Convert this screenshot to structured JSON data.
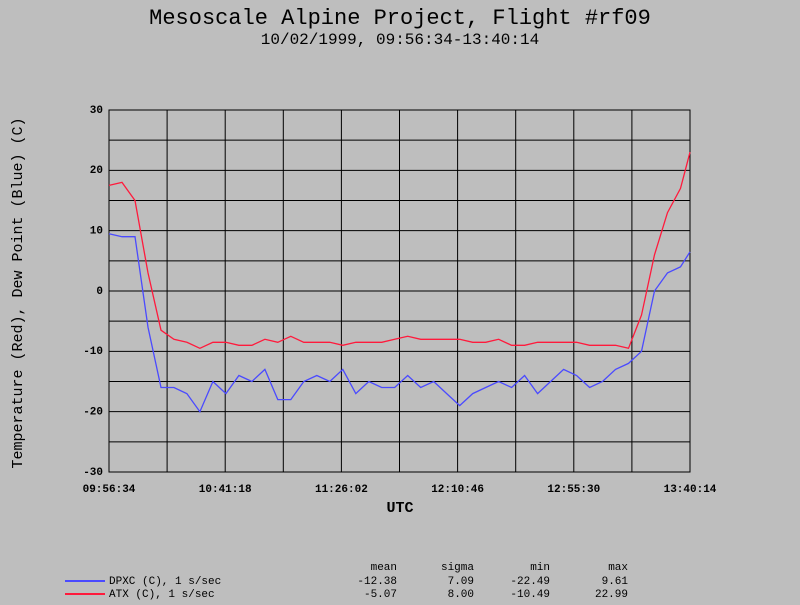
{
  "chart_data": {
    "type": "line",
    "title": "Mesoscale Alpine Project, Flight #rf09",
    "subtitle": "10/02/1999, 09:56:34-13:40:14",
    "x_label": "UTC",
    "y_label": "Temperature (Red), Dew Point (Blue) (C)",
    "x": [
      "09:56:34",
      "10:01:34",
      "10:06:34",
      "10:11:34",
      "10:16:34",
      "10:21:34",
      "10:26:34",
      "10:31:34",
      "10:36:34",
      "10:41:34",
      "10:46:34",
      "10:51:34",
      "10:56:34",
      "11:01:34",
      "11:06:34",
      "11:11:34",
      "11:16:34",
      "11:21:34",
      "11:26:34",
      "11:31:34",
      "11:36:34",
      "11:41:34",
      "11:46:34",
      "11:51:34",
      "11:56:34",
      "12:01:34",
      "12:06:34",
      "12:11:34",
      "12:16:34",
      "12:21:34",
      "12:26:34",
      "12:31:34",
      "12:36:34",
      "12:41:34",
      "12:46:34",
      "12:51:34",
      "12:56:34",
      "13:01:34",
      "13:06:34",
      "13:11:34",
      "13:16:34",
      "13:21:34",
      "13:26:34",
      "13:31:34",
      "13:36:34",
      "13:40:14"
    ],
    "series": [
      {
        "name": "DPXC (C), 1 s/sec",
        "color": "#4a4aff",
        "values": [
          9.5,
          9,
          9,
          -6,
          -16,
          -16,
          -17,
          -20,
          -15,
          -17,
          -14,
          -15,
          -13,
          -18,
          -18,
          -15,
          -14,
          -15,
          -13,
          -17,
          -15,
          -16,
          -16,
          -14,
          -16,
          -15,
          -17,
          -19,
          -17,
          -16,
          -15,
          -16,
          -14,
          -17,
          -15,
          -13,
          -14,
          -16,
          -15,
          -13,
          -12,
          -10,
          0,
          3,
          4,
          6.5
        ]
      },
      {
        "name": "ATX (C), 1 s/sec",
        "color": "#ff1a3c",
        "values": [
          17.5,
          18,
          15,
          3,
          -6.5,
          -8,
          -8.5,
          -9.5,
          -8.5,
          -8.5,
          -9,
          -9,
          -8,
          -8.5,
          -7.5,
          -8.5,
          -8.5,
          -8.5,
          -9,
          -8.5,
          -8.5,
          -8.5,
          -8,
          -7.5,
          -8,
          -8,
          -8,
          -8,
          -8.5,
          -8.5,
          -8,
          -9,
          -9,
          -8.5,
          -8.5,
          -8.5,
          -8.5,
          -9,
          -9,
          -9,
          -9.5,
          -4,
          6,
          13,
          17,
          23
        ]
      }
    ],
    "xlim": [
      "09:56:34",
      "13:40:14"
    ],
    "xticks": [
      "09:56:34",
      "10:41:18",
      "11:26:02",
      "12:10:46",
      "12:55:30",
      "13:40:14"
    ],
    "ylim": [
      -30,
      30
    ],
    "yticks": [
      30,
      20,
      10,
      0,
      -10,
      -20,
      -30
    ],
    "grid": true,
    "minor_grid": true,
    "stats": {
      "columns": [
        "mean",
        "sigma",
        "min",
        "max"
      ],
      "rows": [
        [
          "-12.38",
          "7.09",
          "-22.49",
          "9.61"
        ],
        [
          "-5.07",
          "8.00",
          "-10.49",
          "22.99"
        ]
      ]
    }
  }
}
